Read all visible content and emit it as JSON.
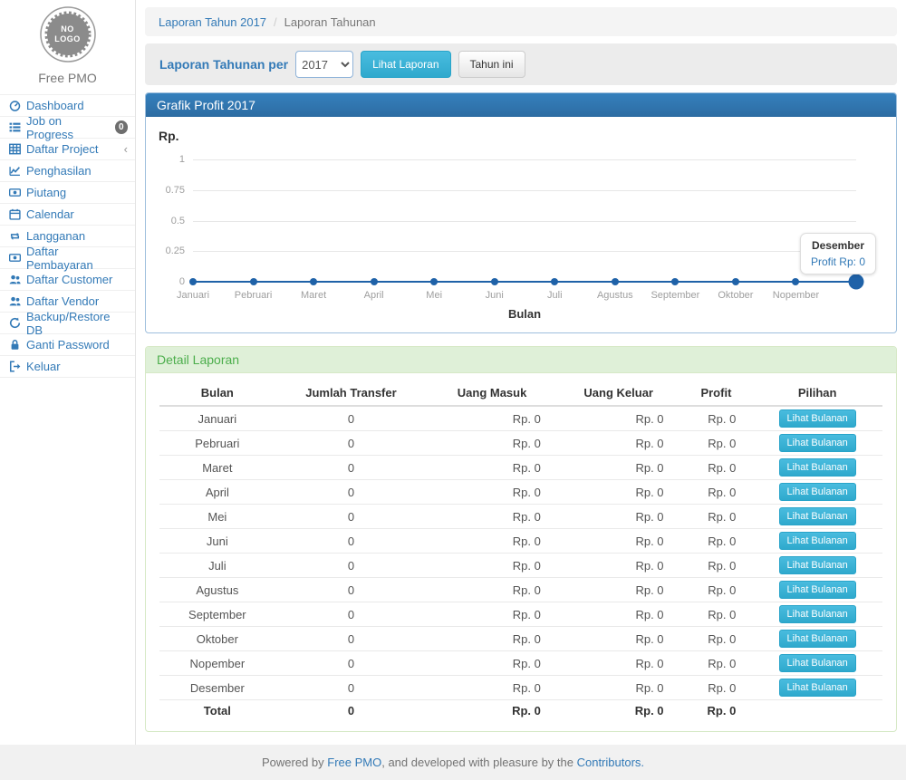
{
  "colors": {
    "accent_blue": "#337ab7",
    "panel_primary_header": "#2d6ca2",
    "panel_success_bg": "#dff0d8",
    "panel_success_text": "#4cae4c",
    "info_button": "#39b3d7",
    "chart_line": "#1f62a8",
    "badge_gray": "#6e6e6e"
  },
  "sidebar": {
    "logo_text": "NO LOGO",
    "brand": "Free PMO",
    "items": [
      {
        "label": "Dashboard"
      },
      {
        "label": "Job on Progress",
        "badge": "0"
      },
      {
        "label": "Daftar Project",
        "chevron": "‹"
      },
      {
        "label": "Penghasilan"
      },
      {
        "label": "Piutang"
      },
      {
        "label": "Calendar"
      },
      {
        "label": "Langganan"
      },
      {
        "label": "Daftar Pembayaran"
      },
      {
        "label": "Daftar Customer"
      },
      {
        "label": "Daftar Vendor"
      },
      {
        "label": "Backup/Restore DB"
      },
      {
        "label": "Ganti Password"
      },
      {
        "label": "Keluar"
      }
    ]
  },
  "breadcrumb": {
    "link": "Laporan Tahun 2017",
    "separator": "/",
    "current": "Laporan Tahunan"
  },
  "filter_bar": {
    "label": "Laporan Tahunan per",
    "year_select": "2017",
    "view_button": "Lihat Laporan",
    "this_year_button": "Tahun ini"
  },
  "chart_panel": {
    "title": "Grafik Profit 2017"
  },
  "chart_data": {
    "type": "line",
    "title": "Grafik Profit 2017",
    "ylabel": "Rp.",
    "xlabel": "Bulan",
    "categories": [
      "Januari",
      "Pebruari",
      "Maret",
      "April",
      "Mei",
      "Juni",
      "Juli",
      "Agustus",
      "September",
      "Oktober",
      "Nopember",
      "Desember"
    ],
    "values": [
      0,
      0,
      0,
      0,
      0,
      0,
      0,
      0,
      0,
      0,
      0,
      0
    ],
    "yticks": [
      1,
      0.75,
      0.5,
      0.25,
      0
    ],
    "ylim": [
      0,
      1
    ],
    "grid": true,
    "last_label_hidden": true,
    "tooltip": {
      "title": "Desember",
      "value": "Profit Rp: 0"
    }
  },
  "detail_panel": {
    "title": "Detail Laporan",
    "action_label": "Lihat Bulanan",
    "table": {
      "headers": [
        "Bulan",
        "Jumlah Transfer",
        "Uang Masuk",
        "Uang Keluar",
        "Profit",
        "Pilihan"
      ],
      "rows": [
        {
          "month": "Januari",
          "transfer": "0",
          "masuk": "Rp. 0",
          "keluar": "Rp. 0",
          "profit": "Rp. 0"
        },
        {
          "month": "Pebruari",
          "transfer": "0",
          "masuk": "Rp. 0",
          "keluar": "Rp. 0",
          "profit": "Rp. 0"
        },
        {
          "month": "Maret",
          "transfer": "0",
          "masuk": "Rp. 0",
          "keluar": "Rp. 0",
          "profit": "Rp. 0"
        },
        {
          "month": "April",
          "transfer": "0",
          "masuk": "Rp. 0",
          "keluar": "Rp. 0",
          "profit": "Rp. 0"
        },
        {
          "month": "Mei",
          "transfer": "0",
          "masuk": "Rp. 0",
          "keluar": "Rp. 0",
          "profit": "Rp. 0"
        },
        {
          "month": "Juni",
          "transfer": "0",
          "masuk": "Rp. 0",
          "keluar": "Rp. 0",
          "profit": "Rp. 0"
        },
        {
          "month": "Juli",
          "transfer": "0",
          "masuk": "Rp. 0",
          "keluar": "Rp. 0",
          "profit": "Rp. 0"
        },
        {
          "month": "Agustus",
          "transfer": "0",
          "masuk": "Rp. 0",
          "keluar": "Rp. 0",
          "profit": "Rp. 0"
        },
        {
          "month": "September",
          "transfer": "0",
          "masuk": "Rp. 0",
          "keluar": "Rp. 0",
          "profit": "Rp. 0"
        },
        {
          "month": "Oktober",
          "transfer": "0",
          "masuk": "Rp. 0",
          "keluar": "Rp. 0",
          "profit": "Rp. 0"
        },
        {
          "month": "Nopember",
          "transfer": "0",
          "masuk": "Rp. 0",
          "keluar": "Rp. 0",
          "profit": "Rp. 0"
        },
        {
          "month": "Desember",
          "transfer": "0",
          "masuk": "Rp. 0",
          "keluar": "Rp. 0",
          "profit": "Rp. 0"
        }
      ],
      "total": {
        "month": "Total",
        "transfer": "0",
        "masuk": "Rp. 0",
        "keluar": "Rp. 0",
        "profit": "Rp. 0"
      }
    }
  },
  "footer": {
    "prefix": "Powered by ",
    "link1": "Free PMO",
    "middle": ", and developed with pleasure by the ",
    "link2": "Contributors."
  }
}
